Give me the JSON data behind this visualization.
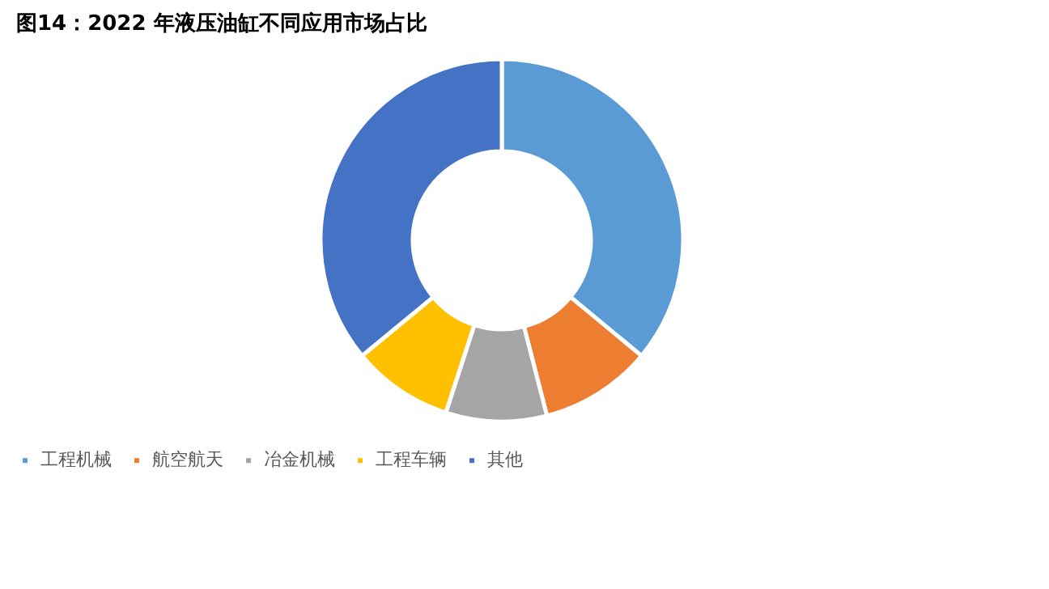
{
  "chart_data": {
    "type": "donut",
    "title": "图14：2022 年液压油缸不同应用市场占比",
    "categories": [
      "工程机械",
      "航空航天",
      "冶金机械",
      "工程车辆",
      "其他"
    ],
    "values": [
      36,
      10,
      9,
      9,
      36
    ],
    "colors": [
      "#5b9bd5",
      "#ed7d31",
      "#a5a5a5",
      "#ffc000",
      "#4472c4"
    ],
    "legend": "bottom"
  }
}
